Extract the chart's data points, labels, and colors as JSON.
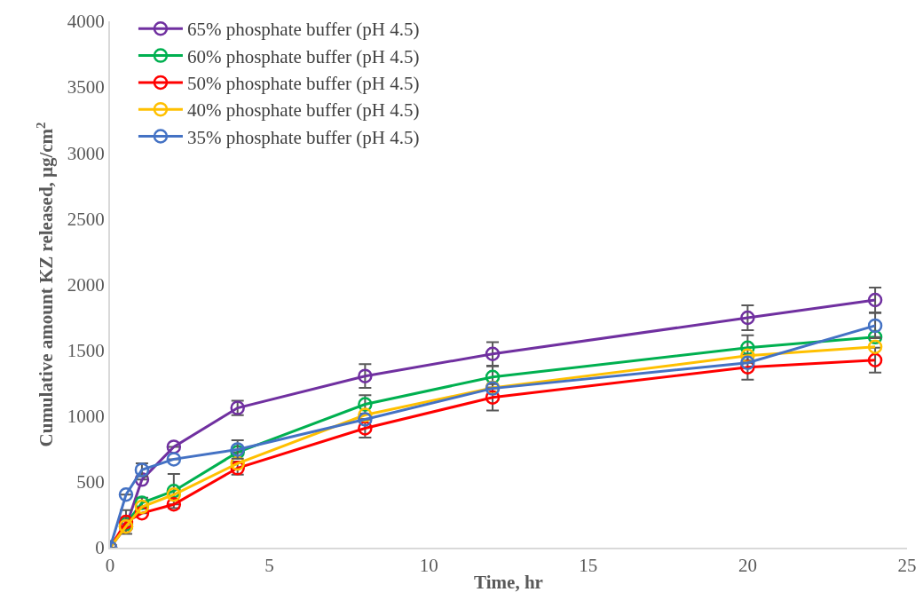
{
  "chart_data": {
    "type": "line",
    "xlabel": "Time, hr",
    "ylabel": "Cumulative amount KZ released, μg/cm$^{2}$",
    "x": [
      0,
      0.5,
      1,
      2,
      4,
      8,
      12,
      20,
      24
    ],
    "series": [
      {
        "name": "65% phosphate buffer (pH 4.5)",
        "color": "#7030a0",
        "values": [
          0,
          160,
          517,
          766,
          1062,
          1304,
          1472,
          1747,
          1882
        ],
        "errors": [
          null,
          null,
          null,
          null,
          55,
          90,
          90,
          95,
          95
        ]
      },
      {
        "name": "60% phosphate buffer (pH 4.5)",
        "color": "#00b050",
        "values": [
          0,
          180,
          340,
          430,
          725,
          1089,
          1297,
          1519,
          1600
        ],
        "errors": [
          null,
          null,
          40,
          130,
          null,
          70,
          80,
          95,
          null
        ]
      },
      {
        "name": "50% phosphate buffer (pH 4.5)",
        "color": "#ff0000",
        "values": [
          0,
          195,
          262,
          329,
          605,
          907,
          1142,
          1371,
          1425
        ],
        "errors": [
          null,
          90,
          null,
          null,
          50,
          70,
          100,
          95,
          95
        ]
      },
      {
        "name": "40% phosphate buffer (pH 4.5)",
        "color": "#ffc000",
        "values": [
          0,
          161,
          310,
          403,
          640,
          1008,
          1215,
          1458,
          1526
        ]
      },
      {
        "name": "35% phosphate buffer (pH 4.5)",
        "color": "#4472c4",
        "values": [
          0,
          403,
          591,
          672,
          746,
          975,
          1210,
          1405,
          1687
        ],
        "errors": [
          null,
          null,
          50,
          null,
          70,
          null,
          null,
          null,
          95
        ]
      }
    ],
    "xlim": [
      0,
      25
    ],
    "xticks": [
      0,
      5,
      10,
      15,
      20,
      25
    ],
    "ylim": [
      0,
      4000
    ],
    "yticks": [
      0,
      500,
      1000,
      1500,
      2000,
      2500,
      3000,
      3500,
      4000
    ],
    "grid": false,
    "legend": "top left",
    "marker": "circle",
    "line_style": "solid"
  }
}
